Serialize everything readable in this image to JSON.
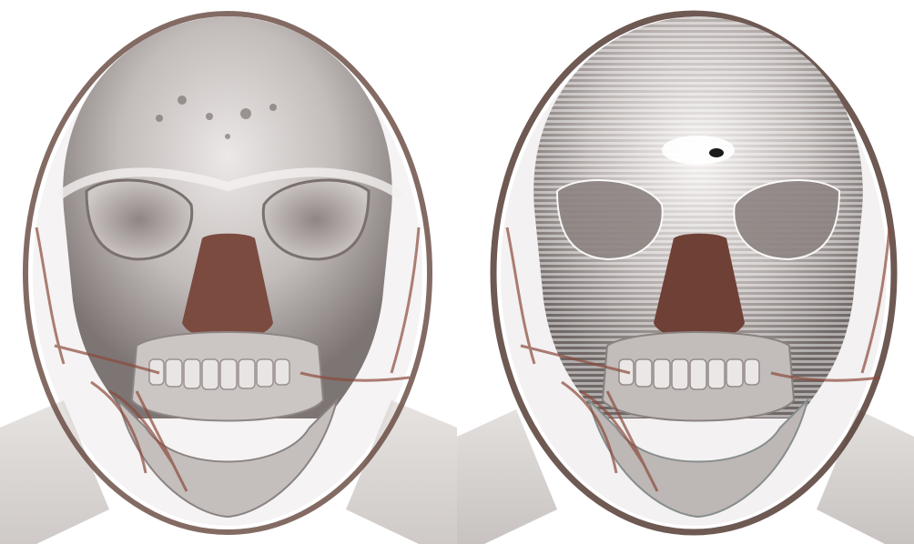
{
  "image": {
    "description_visible": false,
    "panels": [
      {
        "id": "left",
        "render_style": "smooth"
      },
      {
        "id": "right",
        "render_style": "banded"
      }
    ],
    "colors": {
      "background": "#ffffff",
      "skin_outline": "#5a3a30",
      "skull_light": "#d9d4d2",
      "skull_mid": "#a9a2a0",
      "skull_dark": "#6f6866",
      "vessels": "#8b4a3c",
      "shoulders": "#dedbd9"
    }
  }
}
